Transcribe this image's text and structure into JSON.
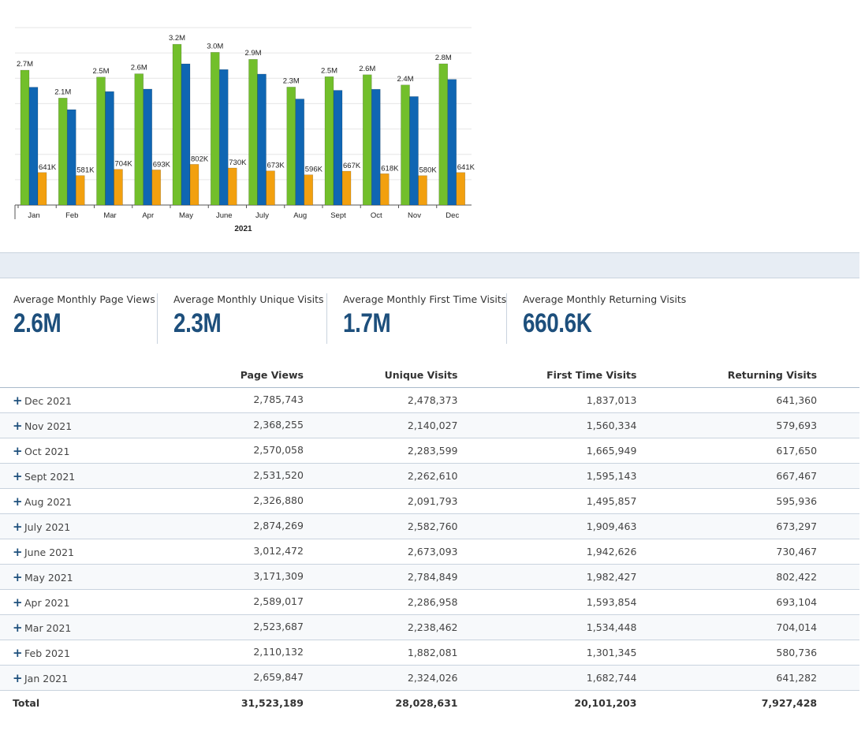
{
  "chart_data": {
    "type": "bar",
    "xlabel": "2021",
    "categories": [
      "Jan",
      "Feb",
      "Mar",
      "Apr",
      "May",
      "June",
      "July",
      "Aug",
      "Sept",
      "Oct",
      "Nov",
      "Dec"
    ],
    "series": [
      {
        "values": [
          2659847,
          2110132,
          2523687,
          2589017,
          3171309,
          3012472,
          2874269,
          2326880,
          2531520,
          2570058,
          2368255,
          2785743
        ],
        "color": "#72bf2b",
        "labels": [
          "2.7M",
          "2.1M",
          "2.5M",
          "2.6M",
          "3.2M",
          "3.0M",
          "2.9M",
          "2.3M",
          "2.5M",
          "2.6M",
          "2.4M",
          "2.8M"
        ]
      },
      {
        "values": [
          2324026,
          1882081,
          2238462,
          2286958,
          2784849,
          2673093,
          2582760,
          2091793,
          2262610,
          2283599,
          2140027,
          2478373
        ],
        "color": "#0f66b3"
      },
      {
        "values": [
          641282,
          580736,
          704014,
          693104,
          802422,
          730467,
          673297,
          595936,
          667467,
          617650,
          579693,
          641360
        ],
        "color": "#f2a00f",
        "labels": [
          "641K",
          "581K",
          "704K",
          "693K",
          "802K",
          "730K",
          "673K",
          "596K",
          "667K",
          "618K",
          "580K",
          "641K"
        ]
      }
    ],
    "ylim": [
      0,
      3500000
    ],
    "grid": true
  },
  "summary": [
    {
      "label": "Average Monthly Page Views",
      "value": "2.6M"
    },
    {
      "label": "Average Monthly Unique Visits",
      "value": "2.3M"
    },
    {
      "label": "Average Monthly First Time Visits",
      "value": "1.7M"
    },
    {
      "label": "Average Monthly Returning Visits",
      "value": "660.6K"
    }
  ],
  "table": {
    "headers": [
      "",
      "Page Views",
      "Unique Visits",
      "First Time Visits",
      "Returning Visits"
    ],
    "expand_icon": "+",
    "rows": [
      [
        "Dec 2021",
        "2,785,743",
        "2,478,373",
        "1,837,013",
        "641,360"
      ],
      [
        "Nov 2021",
        "2,368,255",
        "2,140,027",
        "1,560,334",
        "579,693"
      ],
      [
        "Oct 2021",
        "2,570,058",
        "2,283,599",
        "1,665,949",
        "617,650"
      ],
      [
        "Sept 2021",
        "2,531,520",
        "2,262,610",
        "1,595,143",
        "667,467"
      ],
      [
        "Aug 2021",
        "2,326,880",
        "2,091,793",
        "1,495,857",
        "595,936"
      ],
      [
        "July 2021",
        "2,874,269",
        "2,582,760",
        "1,909,463",
        "673,297"
      ],
      [
        "June 2021",
        "3,012,472",
        "2,673,093",
        "1,942,626",
        "730,467"
      ],
      [
        "May 2021",
        "3,171,309",
        "2,784,849",
        "1,982,427",
        "802,422"
      ],
      [
        "Apr 2021",
        "2,589,017",
        "2,286,958",
        "1,593,854",
        "693,104"
      ],
      [
        "Mar 2021",
        "2,523,687",
        "2,238,462",
        "1,534,448",
        "704,014"
      ],
      [
        "Feb 2021",
        "2,110,132",
        "1,882,081",
        "1,301,345",
        "580,736"
      ],
      [
        "Jan 2021",
        "2,659,847",
        "2,324,026",
        "1,682,744",
        "641,282"
      ]
    ],
    "total": [
      "Total",
      "31,523,189",
      "28,028,631",
      "20,101,203",
      "7,927,428"
    ]
  }
}
